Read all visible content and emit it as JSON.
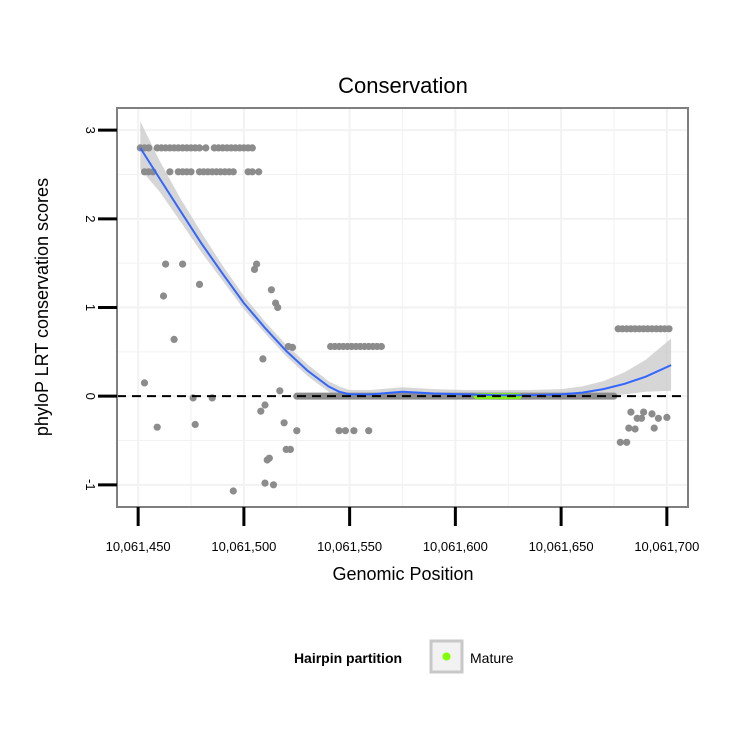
{
  "chart_data": {
    "type": "scatter",
    "title": "Conservation",
    "xlabel": "Genomic Position",
    "ylabel": "phyloP LRT conservation scores",
    "xlim": [
      10061440,
      10061710
    ],
    "ylim": [
      -1.25,
      3.25
    ],
    "x_ticks": [
      10061450,
      10061500,
      10061550,
      10061600,
      10061650,
      10061700
    ],
    "x_tick_labels": [
      "10,061,450",
      "10,061,500",
      "10,061,550",
      "10,061,600",
      "10,061,650",
      "10,061,700"
    ],
    "y_ticks": [
      -1,
      0,
      1,
      2,
      3
    ],
    "y_tick_labels": [
      "-1",
      "0",
      "1",
      "2",
      "3"
    ],
    "reference_line": {
      "y": 0,
      "style": "dashed"
    },
    "legend": {
      "title": "Hairpin partition",
      "entries": [
        {
          "label": "Mature",
          "color": "#7fff00"
        }
      ],
      "position": "bottom"
    },
    "colors": {
      "points": "#8c8c8c",
      "smooth": "#3366ff",
      "band": "#c8c8c8",
      "mature": "#7fff00",
      "panel_border": "#7f7f7f",
      "grid": "#f2f2f2"
    },
    "mature_range": [
      10061610,
      10061630
    ],
    "series": [
      {
        "name": "scores",
        "points": [
          [
            10061451,
            2.8
          ],
          [
            10061453,
            2.8
          ],
          [
            10061455,
            2.8
          ],
          [
            10061453,
            2.53
          ],
          [
            10061455,
            2.53
          ],
          [
            10061457,
            2.53
          ],
          [
            10061459,
            2.8
          ],
          [
            10061461,
            2.8
          ],
          [
            10061463,
            2.8
          ],
          [
            10061465,
            2.8
          ],
          [
            10061467,
            2.8
          ],
          [
            10061469,
            2.8
          ],
          [
            10061471,
            2.8
          ],
          [
            10061473,
            2.8
          ],
          [
            10061475,
            2.8
          ],
          [
            10061477,
            2.8
          ],
          [
            10061479,
            2.8
          ],
          [
            10061482,
            2.8
          ],
          [
            10061486,
            2.8
          ],
          [
            10061488,
            2.8
          ],
          [
            10061490,
            2.8
          ],
          [
            10061492,
            2.8
          ],
          [
            10061494,
            2.8
          ],
          [
            10061496,
            2.8
          ],
          [
            10061498,
            2.8
          ],
          [
            10061500,
            2.8
          ],
          [
            10061502,
            2.8
          ],
          [
            10061504,
            2.8
          ],
          [
            10061465,
            2.53
          ],
          [
            10061469,
            2.53
          ],
          [
            10061471,
            2.53
          ],
          [
            10061473,
            2.53
          ],
          [
            10061475,
            2.53
          ],
          [
            10061479,
            2.53
          ],
          [
            10061481,
            2.53
          ],
          [
            10061483,
            2.53
          ],
          [
            10061485,
            2.53
          ],
          [
            10061487,
            2.53
          ],
          [
            10061489,
            2.53
          ],
          [
            10061491,
            2.53
          ],
          [
            10061493,
            2.53
          ],
          [
            10061495,
            2.53
          ],
          [
            10061502,
            2.53
          ],
          [
            10061504,
            2.53
          ],
          [
            10061507,
            2.53
          ],
          [
            10061453,
            0.15
          ],
          [
            10061459,
            -0.35
          ],
          [
            10061462,
            1.13
          ],
          [
            10061463,
            1.49
          ],
          [
            10061467,
            0.64
          ],
          [
            10061471,
            1.49
          ],
          [
            10061476,
            -0.02
          ],
          [
            10061477,
            -0.32
          ],
          [
            10061479,
            1.26
          ],
          [
            10061485,
            -0.02
          ],
          [
            10061495,
            -1.07
          ],
          [
            10061505,
            1.43
          ],
          [
            10061506,
            1.49
          ],
          [
            10061508,
            -0.17
          ],
          [
            10061509,
            0.42
          ],
          [
            10061510,
            -0.1
          ],
          [
            10061510,
            -0.98
          ],
          [
            10061511,
            -0.72
          ],
          [
            10061512,
            -0.7
          ],
          [
            10061513,
            1.2
          ],
          [
            10061514,
            -1.0
          ],
          [
            10061515,
            1.05
          ],
          [
            10061516,
            1.0
          ],
          [
            10061517,
            0.06
          ],
          [
            10061519,
            -0.3
          ],
          [
            10061520,
            -0.6
          ],
          [
            10061521,
            0.56
          ],
          [
            10061522,
            -0.6
          ],
          [
            10061523,
            0.55
          ],
          [
            10061525,
            -0.39
          ],
          [
            10061541,
            0.56
          ],
          [
            10061543,
            0.56
          ],
          [
            10061545,
            0.56
          ],
          [
            10061547,
            0.56
          ],
          [
            10061549,
            0.56
          ],
          [
            10061551,
            0.56
          ],
          [
            10061553,
            0.56
          ],
          [
            10061555,
            0.56
          ],
          [
            10061557,
            0.56
          ],
          [
            10061559,
            0.56
          ],
          [
            10061561,
            0.56
          ],
          [
            10061563,
            0.56
          ],
          [
            10061565,
            0.56
          ],
          [
            10061545,
            -0.39
          ],
          [
            10061548,
            -0.39
          ],
          [
            10061552,
            -0.39
          ],
          [
            10061559,
            -0.39
          ],
          [
            10061677,
            0.76
          ],
          [
            10061679,
            0.76
          ],
          [
            10061681,
            0.76
          ],
          [
            10061683,
            0.76
          ],
          [
            10061685,
            0.76
          ],
          [
            10061687,
            0.76
          ],
          [
            10061689,
            0.76
          ],
          [
            10061691,
            0.76
          ],
          [
            10061693,
            0.76
          ],
          [
            10061695,
            0.76
          ],
          [
            10061697,
            0.76
          ],
          [
            10061699,
            0.76
          ],
          [
            10061701,
            0.76
          ],
          [
            10061678,
            -0.52
          ],
          [
            10061681,
            -0.52
          ],
          [
            10061682,
            -0.36
          ],
          [
            10061683,
            -0.18
          ],
          [
            10061685,
            -0.37
          ],
          [
            10061686,
            -0.25
          ],
          [
            10061688,
            -0.25
          ],
          [
            10061689,
            -0.18
          ],
          [
            10061693,
            -0.2
          ],
          [
            10061694,
            -0.36
          ],
          [
            10061696,
            -0.25
          ],
          [
            10061700,
            -0.24
          ]
        ]
      },
      {
        "name": "zero-score positions",
        "range": [
          10061525,
          10061675
        ],
        "y": 0
      },
      {
        "name": "loess-fit",
        "x": [
          10061451,
          10061460,
          10061470,
          10061480,
          10061490,
          10061500,
          10061510,
          10061520,
          10061530,
          10061540,
          10061545,
          10061550,
          10061560,
          10061575,
          10061590,
          10061605,
          10061620,
          10061635,
          10061650,
          10061660,
          10061670,
          10061680,
          10061690,
          10061702
        ],
        "y": [
          2.8,
          2.46,
          2.09,
          1.72,
          1.38,
          1.05,
          0.77,
          0.51,
          0.29,
          0.11,
          0.05,
          0.02,
          0.02,
          0.05,
          0.03,
          0.02,
          0.01,
          0.01,
          0.02,
          0.04,
          0.08,
          0.14,
          0.22,
          0.35
        ],
        "lower": [
          2.56,
          2.31,
          1.97,
          1.62,
          1.3,
          0.98,
          0.71,
          0.45,
          0.23,
          0.05,
          -0.01,
          -0.03,
          -0.02,
          0.01,
          -0.02,
          -0.03,
          -0.04,
          -0.04,
          -0.03,
          -0.02,
          0.0,
          0.02,
          0.05,
          0.06
        ],
        "upper": [
          3.1,
          2.66,
          2.23,
          1.84,
          1.47,
          1.13,
          0.84,
          0.58,
          0.36,
          0.17,
          0.11,
          0.07,
          0.07,
          0.1,
          0.08,
          0.07,
          0.07,
          0.07,
          0.08,
          0.11,
          0.17,
          0.27,
          0.41,
          0.65
        ]
      }
    ]
  }
}
